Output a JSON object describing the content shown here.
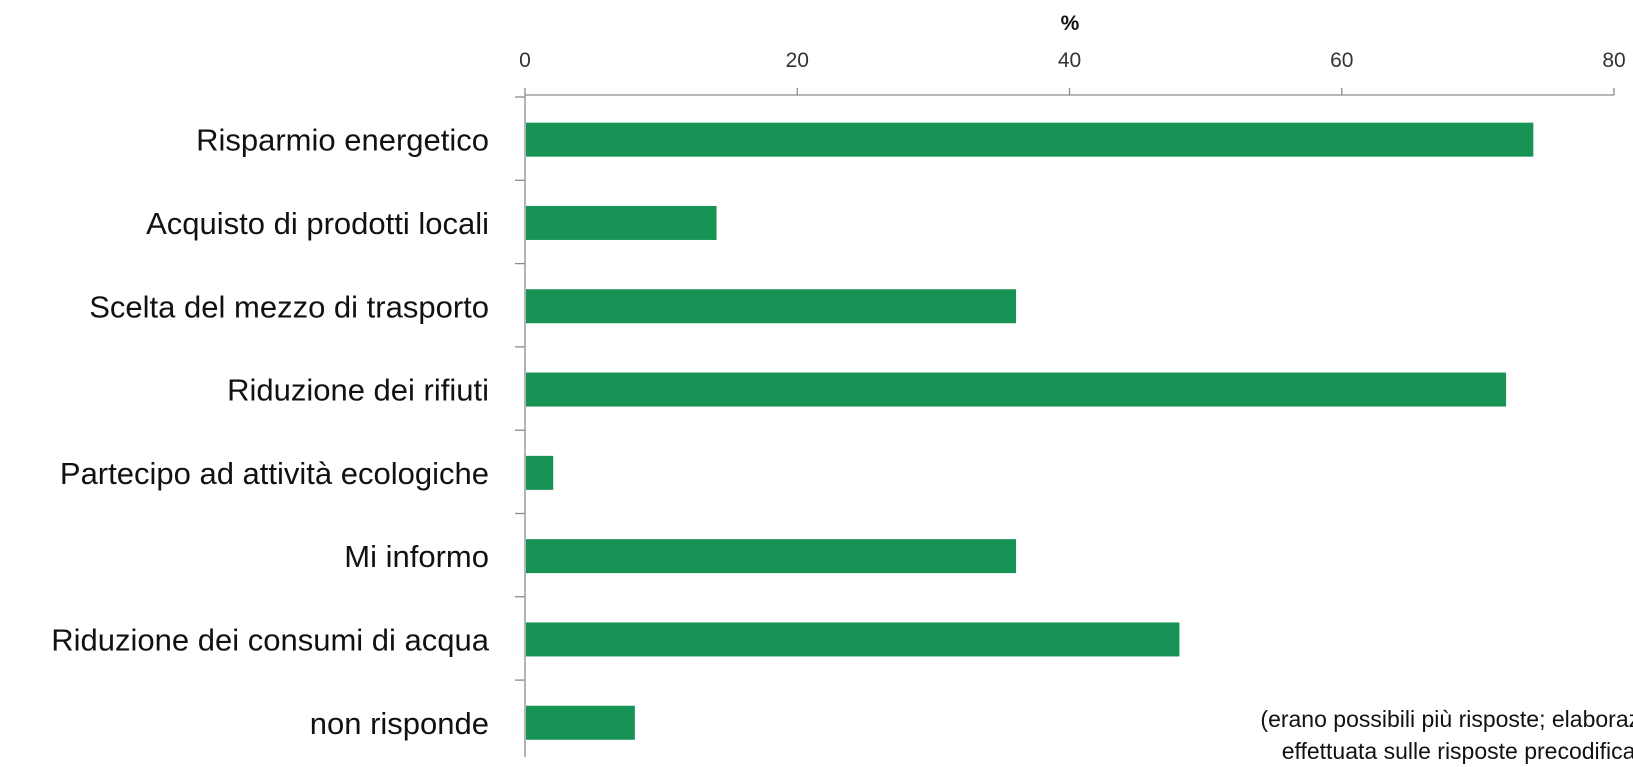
{
  "chart_data": {
    "type": "bar",
    "orientation": "horizontal",
    "xlabel": "%",
    "ylabel": "",
    "xlim": [
      0,
      80
    ],
    "ticks": [
      0,
      20,
      40,
      60,
      80
    ],
    "x_axis_position": "top",
    "grid": false,
    "categories": [
      "Risparmio energetico",
      "Acquisto di prodotti locali",
      "Scelta del mezzo di trasporto",
      "Riduzione dei rifiuti",
      "Partecipo ad attività ecologiche",
      "Mi informo",
      "Riduzione dei consumi di acqua",
      "non risponde"
    ],
    "values": [
      74,
      14,
      36,
      72,
      2,
      36,
      48,
      8
    ],
    "bar_color": "#179455",
    "annotation_lines": [
      "(erano possibili più risposte; elaborazione",
      "effettuata sulle risposte precodificate)"
    ]
  }
}
